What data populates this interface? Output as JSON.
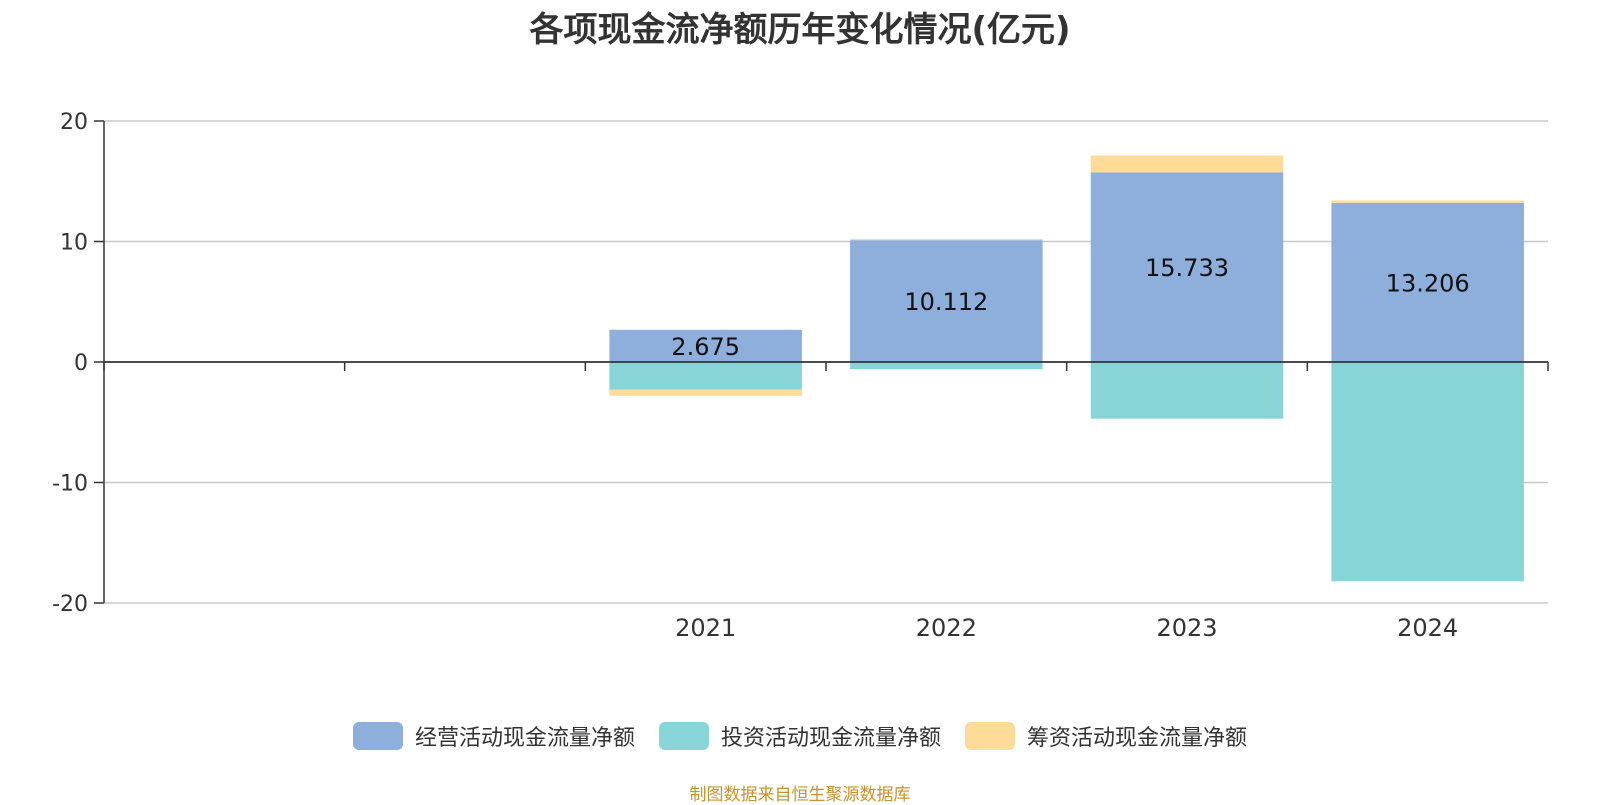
{
  "chart_data": {
    "type": "bar",
    "stacked": true,
    "title": "各项现金流净额历年变化情况(亿元)",
    "categories": [
      "",
      "",
      "2021",
      "2022",
      "2023",
      "2024"
    ],
    "ylim": [
      -20,
      20
    ],
    "yticks": [
      20,
      10,
      0,
      -10,
      -20
    ],
    "grid": true,
    "legend_position": "bottom",
    "series": [
      {
        "name": "经营活动现金流量净额",
        "color": "#8eaedb",
        "values": [
          null,
          null,
          2.675,
          10.112,
          15.733,
          13.206
        ],
        "labels": [
          "",
          "",
          "2.675",
          "10.112",
          "15.733",
          "13.206"
        ]
      },
      {
        "name": "投资活动现金流量净额",
        "color": "#88d5d8",
        "values": [
          null,
          null,
          -2.3,
          -0.6,
          -4.7,
          -18.2
        ]
      },
      {
        "name": "筹资活动现金流量净额",
        "color": "#fedb97",
        "values": [
          null,
          null,
          -0.5,
          0.1,
          1.4,
          0.2
        ]
      }
    ]
  },
  "footer": {
    "source": "制图数据来自恒生聚源数据库"
  }
}
